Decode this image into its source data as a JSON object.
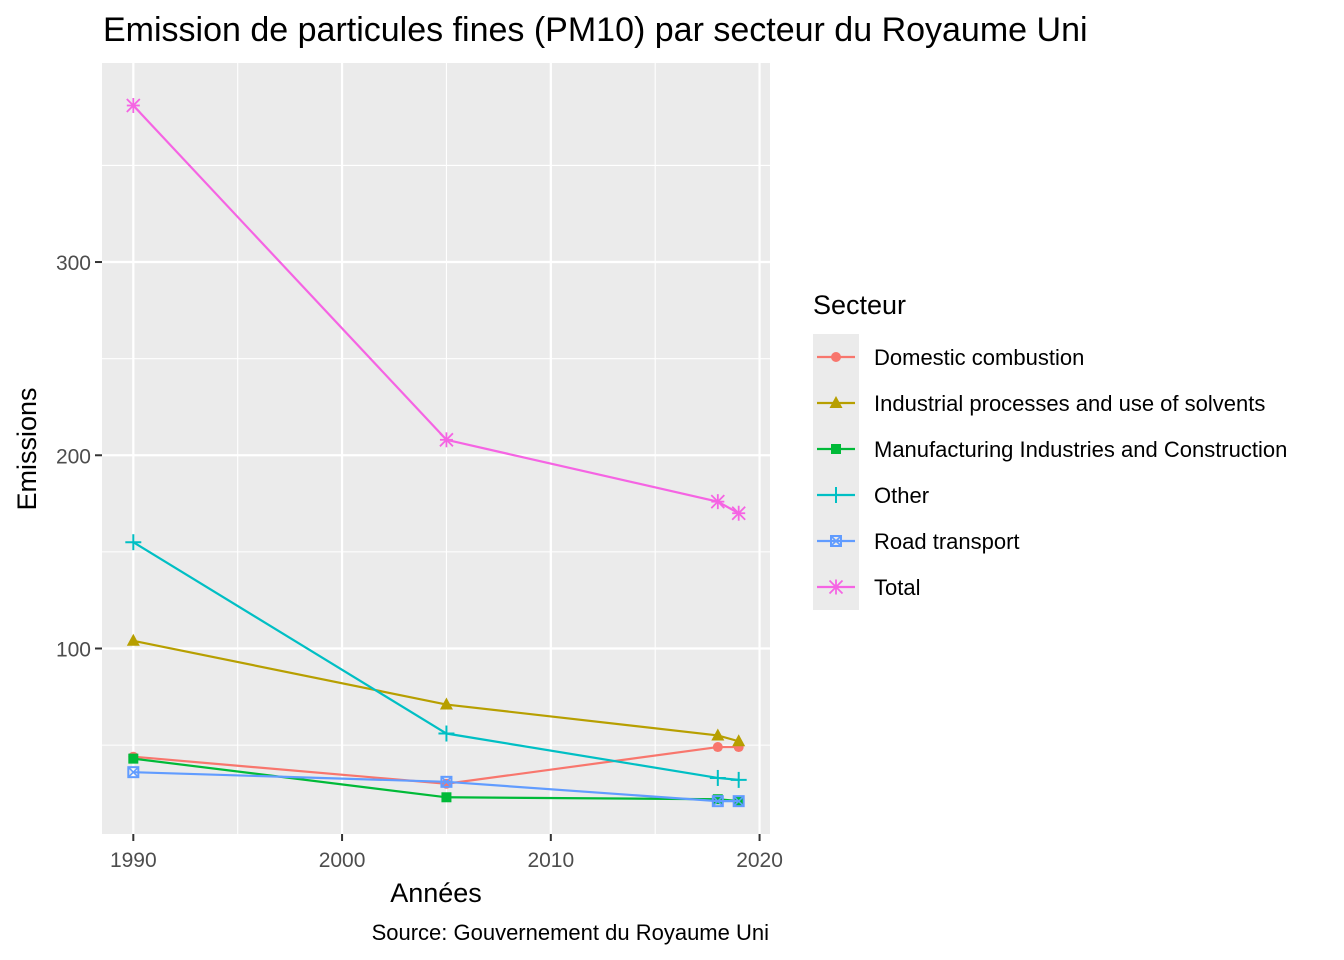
{
  "chart_data": {
    "type": "line",
    "title": "Emission de particules fines (PM10) par secteur du Royaume Uni",
    "xlabel": "Années",
    "ylabel": "Emissions",
    "caption": "Source: Gouvernement du Royaume Uni",
    "x_ticks": [
      1990,
      2000,
      2010,
      2020
    ],
    "y_ticks": [
      100,
      200,
      300
    ],
    "xlim": [
      1988.5,
      2020.5
    ],
    "ylim": [
      4,
      403
    ],
    "grid": true,
    "legend": {
      "title": "Secteur",
      "position": "right"
    },
    "series": [
      {
        "name": "Domestic combustion",
        "color": "#F8766D",
        "marker": "circle",
        "points": [
          [
            1990,
            44
          ],
          [
            2005,
            30
          ],
          [
            2018,
            49
          ],
          [
            2019,
            49
          ]
        ]
      },
      {
        "name": "Industrial processes and use of solvents",
        "color": "#B79F00",
        "marker": "triangle",
        "points": [
          [
            1990,
            104
          ],
          [
            2005,
            71
          ],
          [
            2018,
            55
          ],
          [
            2019,
            52
          ]
        ]
      },
      {
        "name": "Manufacturing Industries and Construction",
        "color": "#00BA38",
        "marker": "square",
        "points": [
          [
            1990,
            43
          ],
          [
            2005,
            23
          ],
          [
            2018,
            22
          ],
          [
            2019,
            21
          ]
        ]
      },
      {
        "name": "Other",
        "color": "#00BFC4",
        "marker": "plus",
        "points": [
          [
            1990,
            155
          ],
          [
            2005,
            56
          ],
          [
            2018,
            33
          ],
          [
            2019,
            32
          ]
        ]
      },
      {
        "name": "Road transport",
        "color": "#619CFF",
        "marker": "boxcross",
        "points": [
          [
            1990,
            36
          ],
          [
            2005,
            31
          ],
          [
            2018,
            21
          ],
          [
            2019,
            21
          ]
        ]
      },
      {
        "name": "Total",
        "color": "#F564E3",
        "marker": "star",
        "points": [
          [
            1990,
            381
          ],
          [
            2005,
            208
          ],
          [
            2018,
            176
          ],
          [
            2019,
            170
          ]
        ]
      }
    ]
  }
}
